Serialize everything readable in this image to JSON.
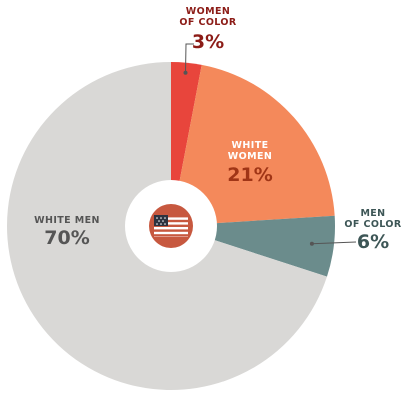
{
  "chart_data": {
    "type": "pie",
    "donut": true,
    "start_angle_deg": 0,
    "direction": "clockwise",
    "slices": [
      {
        "label": "WOMEN\nOF COLOR",
        "value": 3,
        "display": "3%",
        "color": "#e8453c",
        "label_color": "#8c1c17",
        "value_color": "#8c1c17"
      },
      {
        "label": "WHITE\nWOMEN",
        "value": 21,
        "display": "21%",
        "color": "#f4895b",
        "label_color": "#ffffff",
        "value_color": "#a03516"
      },
      {
        "label": "MEN\nOF COLOR",
        "value": 6,
        "display": "6%",
        "color": "#6b8c8c",
        "label_color": "#3d5656",
        "value_color": "#3d5656"
      },
      {
        "label": "WHITE MEN",
        "value": 70,
        "display": "70%",
        "color": "#d9d8d6",
        "label_color": "#555555",
        "value_color": "#555555"
      }
    ],
    "center_icon": "us-flag-icon",
    "center_icon_bg": "#c7583f"
  }
}
